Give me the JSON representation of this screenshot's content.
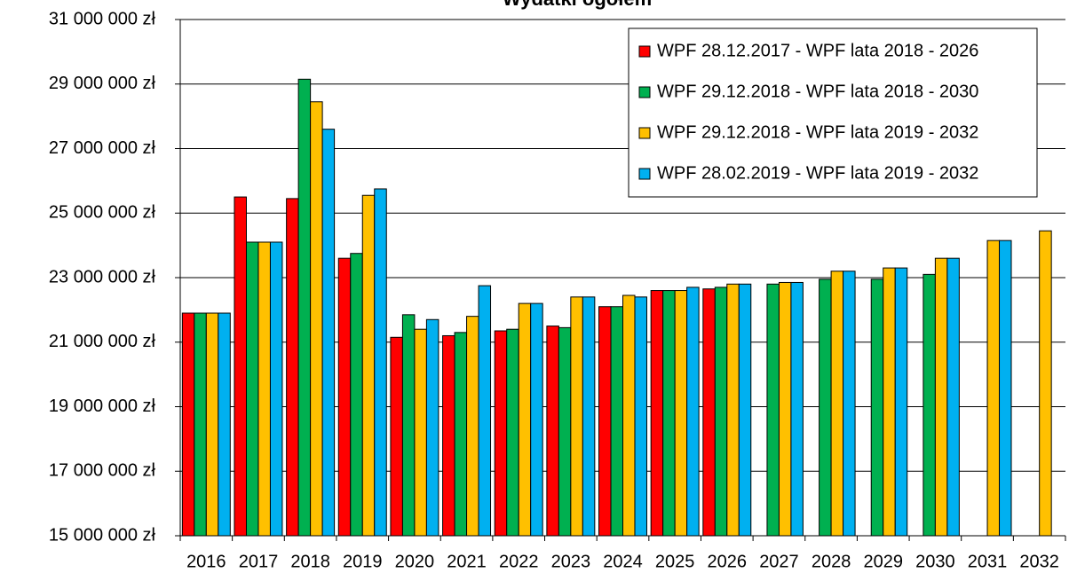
{
  "chart_data": {
    "type": "bar",
    "title": "Wydatki ogółem",
    "categories": [
      "2016",
      "2017",
      "2018",
      "2019",
      "2020",
      "2021",
      "2022",
      "2023",
      "2024",
      "2025",
      "2026",
      "2027",
      "2028",
      "2029",
      "2030",
      "2031",
      "2032"
    ],
    "series": [
      {
        "name": "WPF 28.12.2017 - WPF lata 2018 - 2026",
        "color": "#ff0000",
        "values": [
          21900000,
          25500000,
          25450000,
          23600000,
          21150000,
          21200000,
          21350000,
          21500000,
          22100000,
          22600000,
          22650000,
          null,
          null,
          null,
          null,
          null,
          null
        ]
      },
      {
        "name": "WPF 29.12.2018 - WPF lata 2018 - 2030",
        "color": "#00b050",
        "values": [
          21900000,
          24100000,
          29150000,
          23750000,
          21850000,
          21300000,
          21400000,
          21450000,
          22100000,
          22600000,
          22700000,
          22800000,
          22950000,
          22950000,
          23100000,
          null,
          null
        ]
      },
      {
        "name": "WPF 29.12.2018 - WPF lata 2019 - 2032",
        "color": "#ffc000",
        "values": [
          21900000,
          24100000,
          28450000,
          25550000,
          21400000,
          21800000,
          22200000,
          22400000,
          22450000,
          22600000,
          22800000,
          22850000,
          23200000,
          23300000,
          23600000,
          24150000,
          24450000
        ]
      },
      {
        "name": "WPF 28.02.2019 - WPF lata 2019 - 2032",
        "color": "#00b0f0",
        "values": [
          21900000,
          24100000,
          27600000,
          25750000,
          21700000,
          22750000,
          22200000,
          22400000,
          22400000,
          22700000,
          22800000,
          22850000,
          23200000,
          23300000,
          23600000,
          24150000,
          null
        ]
      }
    ],
    "ylim": [
      15000000,
      31000000
    ],
    "yticks": [
      {
        "value": 15000000,
        "label": "15 000 000 zł"
      },
      {
        "value": 17000000,
        "label": "17 000 000 zł"
      },
      {
        "value": 19000000,
        "label": "19 000 000 zł"
      },
      {
        "value": 21000000,
        "label": "21 000 000 zł"
      },
      {
        "value": 23000000,
        "label": "23 000 000 zł"
      },
      {
        "value": 25000000,
        "label": "25 000 000 zł"
      },
      {
        "value": 27000000,
        "label": "27 000 000 zł"
      },
      {
        "value": 29000000,
        "label": "29 000 000 zł"
      },
      {
        "value": 31000000,
        "label": "31 000 000 zł"
      }
    ],
    "grid": true,
    "legend": "top-right"
  }
}
